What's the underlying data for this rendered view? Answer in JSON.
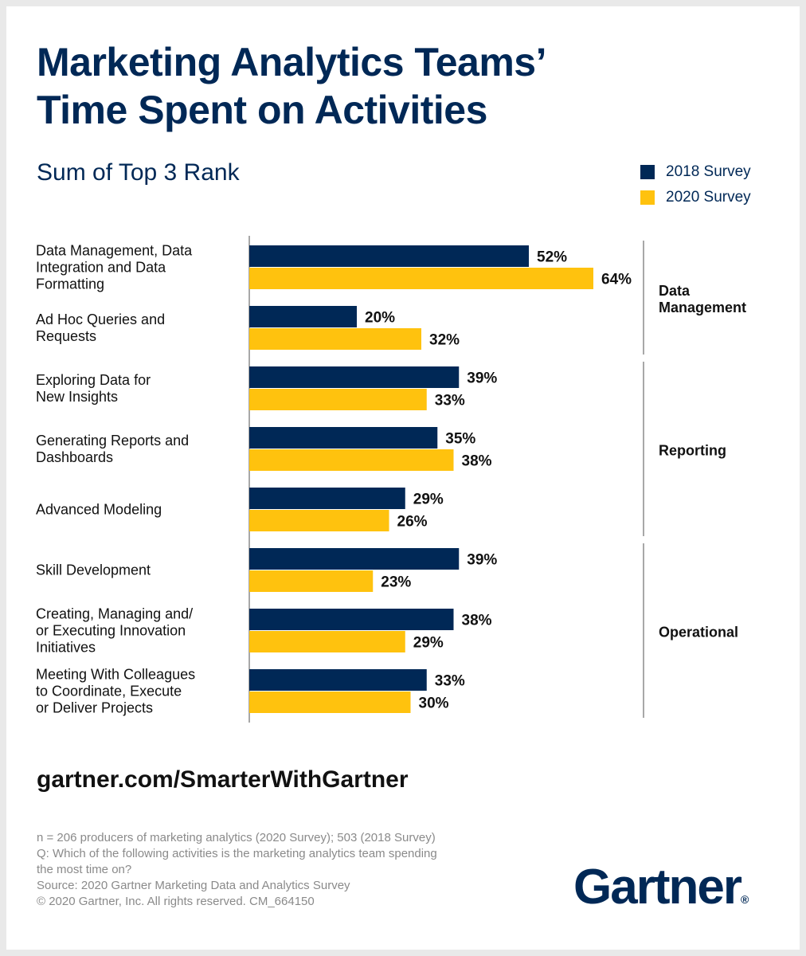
{
  "title": "Marketing Analytics Teams’\nTime Spent on Activities",
  "colors": {
    "s2018": "#002856",
    "s2020": "#ffc20e",
    "axis": "#8c8c8c",
    "text": "#111111"
  },
  "chart_data": {
    "type": "bar",
    "orientation": "horizontal",
    "title": "Marketing Analytics Teams’ Time Spent on Activities",
    "subtitle": "Sum of Top 3 Rank",
    "legend_position": "top-right",
    "grid": false,
    "xlim": [
      0,
      100
    ],
    "categories": [
      "Data Management, Data\nIntegration and Data\nFormatting",
      "Ad Hoc Queries and\nRequests",
      "Exploring Data for\nNew Insights",
      "Generating Reports and\nDashboards",
      "Advanced Modeling",
      "Skill Development",
      "Creating, Managing and/\nor Executing Innovation\nInitiatives",
      "Meeting With Colleagues\nto Coordinate, Execute\nor Deliver Projects"
    ],
    "series": [
      {
        "name": "2018 Survey",
        "values": [
          52,
          20,
          39,
          35,
          29,
          39,
          38,
          33
        ],
        "labels": [
          "52%",
          "20%",
          "39%",
          "35%",
          "29%",
          "39%",
          "38%",
          "33%"
        ]
      },
      {
        "name": "2020 Survey",
        "values": [
          64,
          32,
          33,
          38,
          26,
          23,
          29,
          30
        ],
        "labels": [
          "64%",
          "32%",
          "33%",
          "38%",
          "26%",
          "23%",
          "29%",
          "30%"
        ]
      }
    ],
    "groups": [
      {
        "label": "Data\nManagement",
        "start": 0,
        "end": 1
      },
      {
        "label": "Reporting",
        "start": 2,
        "end": 4
      },
      {
        "label": "Operational",
        "start": 5,
        "end": 7
      }
    ]
  },
  "url": "gartner.com/SmarterWithGartner",
  "footnote": "n = 206 producers of marketing analytics (2020 Survey); 503 (2018 Survey)\nQ: Which of the following activities is the marketing analytics team spending\nthe most time on?\nSource: 2020 Gartner Marketing Data and Analytics Survey\n© 2020 Gartner, Inc. All rights reserved. CM_664150",
  "logo": {
    "text": "Gartner",
    "mark": "®"
  }
}
